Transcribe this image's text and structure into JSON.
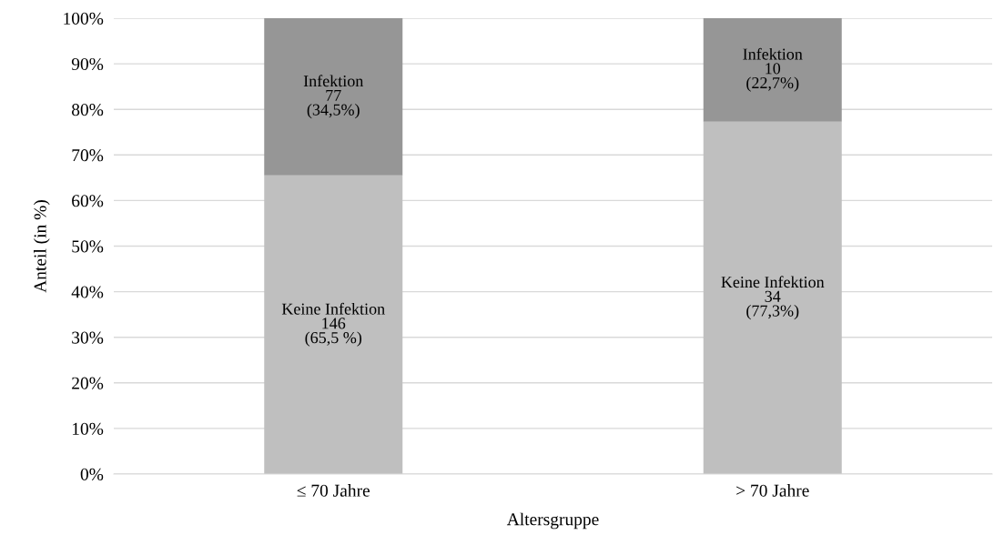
{
  "chart_data": {
    "type": "bar",
    "stacked": true,
    "xlabel": "Altersgruppe",
    "ylabel": "Anteil (in %)",
    "categories": [
      "≤ 70 Jahre",
      "> 70 Jahre"
    ],
    "series": [
      {
        "color": "#bfbfbf",
        "values": [
          65.5,
          77.3
        ],
        "value_labels": [
          "Keine Infektion\n146\n(65,5 %)",
          "Keine Infektion\n34\n(77,3%)"
        ]
      },
      {
        "color": "#969696",
        "values": [
          34.5,
          22.7
        ],
        "value_labels": [
          "Infektion\n77\n(34,5%)",
          "Infektion\n10\n(22,7%)"
        ]
      }
    ],
    "ylim": [
      0,
      100
    ],
    "yticks": [
      {
        "value": 0,
        "label": "0%"
      },
      {
        "value": 10,
        "label": "10%"
      },
      {
        "value": 20,
        "label": "20%"
      },
      {
        "value": 30,
        "label": "30%"
      },
      {
        "value": 40,
        "label": "40%"
      },
      {
        "value": 50,
        "label": "50%"
      },
      {
        "value": 60,
        "label": "60%"
      },
      {
        "value": 70,
        "label": "70%"
      },
      {
        "value": 80,
        "label": "80%"
      },
      {
        "value": 90,
        "label": "90%"
      },
      {
        "value": 100,
        "label": "100%"
      }
    ],
    "grid": "y"
  }
}
